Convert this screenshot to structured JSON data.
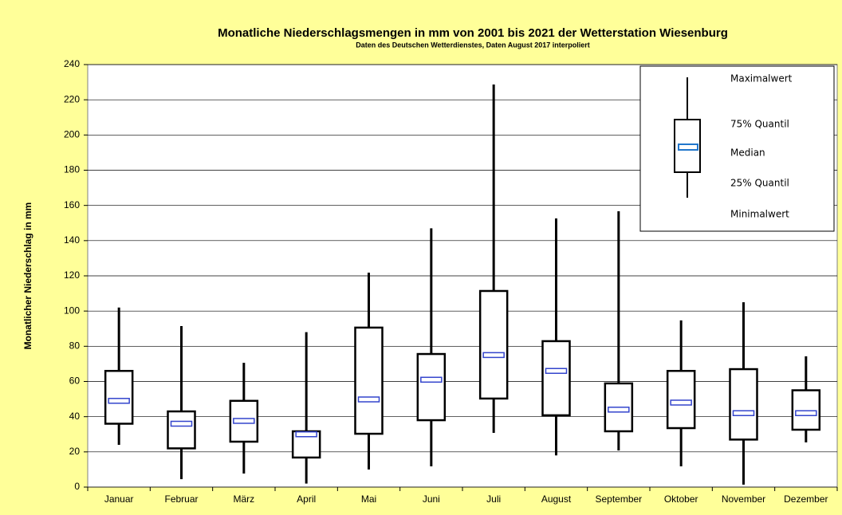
{
  "chart_data": {
    "type": "box",
    "title": "Monatliche Niederschlagsmengen in mm  von 2001 bis 2021 der Wetterstation Wiesenburg",
    "subtitle": "Daten des Deutschen Wetterdienstes,  Daten August 2017 interpoliert",
    "y_label": "Monatlicher Niederschlag in mm",
    "categories": [
      "Januar",
      "Februar",
      "März",
      "April",
      "Mai",
      "Juni",
      "Juli",
      "August",
      "September",
      "Oktober",
      "November",
      "Dezember"
    ],
    "max": [
      102,
      91.5,
      70.6,
      88,
      121.8,
      147,
      228.7,
      152.6,
      156.7,
      94.7,
      105,
      74.3
    ],
    "q3": [
      66,
      43,
      49,
      31.7,
      90.6,
      75.6,
      111.4,
      82.9,
      58.9,
      66,
      67,
      55
    ],
    "median": [
      49,
      36,
      37.6,
      30,
      49.8,
      61,
      75,
      66,
      44,
      48,
      42,
      42
    ],
    "q1": [
      36,
      22,
      25.8,
      16.8,
      30.3,
      38,
      50.3,
      40.8,
      31.7,
      33.5,
      27,
      32.6
    ],
    "min": [
      24,
      4.5,
      7.7,
      2,
      10,
      11.8,
      30.8,
      18,
      20.8,
      11.8,
      1.4,
      25.4
    ],
    "legend": {
      "max": "Maximalwert",
      "q3": "75% Quantil",
      "median": "Median",
      "q1": "25% Quantil",
      "min": "Minimalwert"
    },
    "box_color": "#000000",
    "median_color": "#3344cc",
    "ylim": [
      0,
      240
    ],
    "yticks": [
      0,
      20,
      40,
      60,
      80,
      100,
      120,
      140,
      160,
      180,
      200,
      220,
      240
    ],
    "grid": true
  }
}
